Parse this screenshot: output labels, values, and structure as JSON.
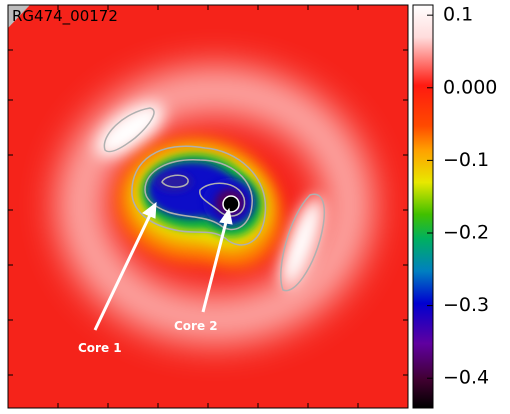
{
  "chart_data": {
    "type": "image",
    "title": "RG474_00172",
    "annotations": [
      "Core 1",
      "Core 2"
    ],
    "colorbar": {
      "lim": [
        -0.441,
        0.114
      ],
      "ticks": [
        0.1,
        {
          "value": 0,
          "label": "0.000"
        },
        {
          "value": -0.1,
          "label": "−0.1"
        },
        {
          "value": -0.2,
          "label": "−0.2"
        },
        {
          "value": -0.3,
          "label": "−0.3"
        },
        {
          "value": -0.4,
          "label": "−0.4"
        }
      ]
    }
  }
}
